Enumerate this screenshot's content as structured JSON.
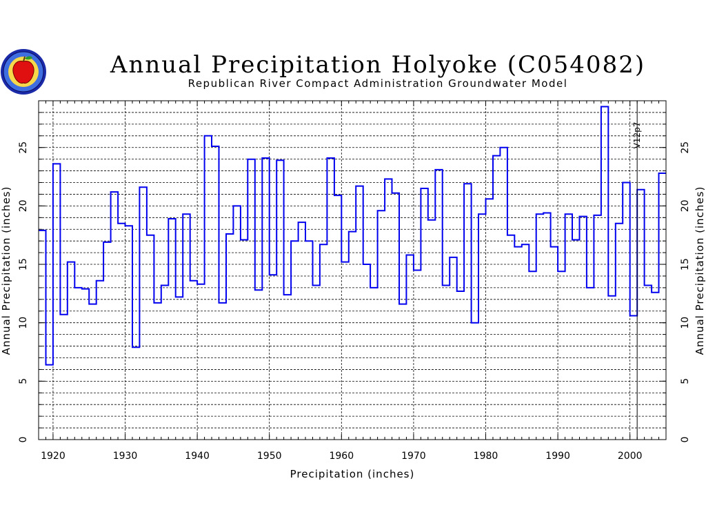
{
  "chart_data": {
    "type": "line",
    "style": "step",
    "title": "Annual Precipitation Holyoke (C054082)",
    "subtitle": "Republican River Compact Administration Groundwater Model",
    "xlabel": "Precipitation  (inches)",
    "ylabel": "Annual  Precipitation  (inches)",
    "xlim": [
      1918,
      2005
    ],
    "ylim": [
      0,
      29
    ],
    "xticks": [
      1920,
      1930,
      1940,
      1950,
      1960,
      1970,
      1980,
      1990,
      2000
    ],
    "yticks": [
      0,
      5,
      10,
      15,
      20,
      25
    ],
    "yminor_step": 1,
    "grid": true,
    "annotation": {
      "label": "V12p7",
      "x": 2001
    },
    "series": [
      {
        "color": "#0000ee",
        "x": [
          1918,
          1919,
          1920,
          1921,
          1922,
          1923,
          1924,
          1925,
          1926,
          1927,
          1928,
          1929,
          1930,
          1931,
          1932,
          1933,
          1934,
          1935,
          1936,
          1937,
          1938,
          1939,
          1940,
          1941,
          1942,
          1943,
          1944,
          1945,
          1946,
          1947,
          1948,
          1949,
          1950,
          1951,
          1952,
          1953,
          1954,
          1955,
          1956,
          1957,
          1958,
          1959,
          1960,
          1961,
          1962,
          1963,
          1964,
          1965,
          1966,
          1967,
          1968,
          1969,
          1970,
          1971,
          1972,
          1973,
          1974,
          1975,
          1976,
          1977,
          1978,
          1979,
          1980,
          1981,
          1982,
          1983,
          1984,
          1985,
          1986,
          1987,
          1988,
          1989,
          1990,
          1991,
          1992,
          1993,
          1994,
          1995,
          1996,
          1997,
          1998,
          1999,
          2000,
          2001,
          2002,
          2003,
          2004
        ],
        "y": [
          17.9,
          6.4,
          23.6,
          10.7,
          15.2,
          13.0,
          12.9,
          11.6,
          13.6,
          16.9,
          21.2,
          18.5,
          18.3,
          7.9,
          21.6,
          17.5,
          11.7,
          13.2,
          18.9,
          12.2,
          19.3,
          13.6,
          13.3,
          26.0,
          25.1,
          11.7,
          17.6,
          20.0,
          17.1,
          24.0,
          12.8,
          24.1,
          14.1,
          23.9,
          12.4,
          17.0,
          18.6,
          17.0,
          13.2,
          16.7,
          24.1,
          20.9,
          15.2,
          17.8,
          21.7,
          15.0,
          13.0,
          19.6,
          22.3,
          21.1,
          11.6,
          15.8,
          14.5,
          21.5,
          18.8,
          23.1,
          13.2,
          15.6,
          12.7,
          21.9,
          10.0,
          19.3,
          20.6,
          24.3,
          25.0,
          17.5,
          16.5,
          16.7,
          14.4,
          19.3,
          19.4,
          16.5,
          14.4,
          19.3,
          17.1,
          19.1,
          13.0,
          19.2,
          28.5,
          12.3,
          18.5,
          22.0,
          10.6,
          21.4,
          13.2,
          12.6,
          22.8
        ]
      }
    ]
  }
}
